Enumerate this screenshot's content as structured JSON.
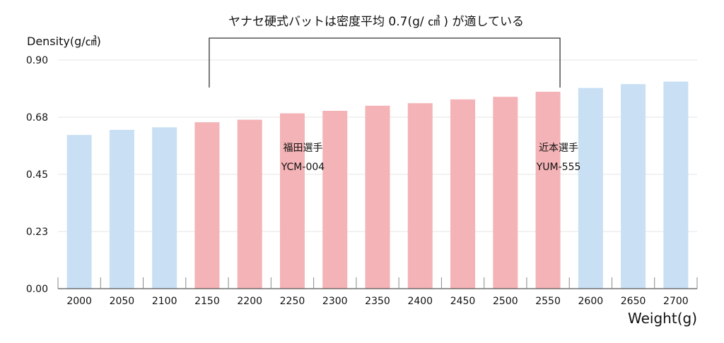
{
  "chart_data": {
    "type": "bar",
    "title": "ヤナセ硬式バットは密度平均 0.7(g/ ㎤ ) が適している",
    "ylabel": "Density(g/㎤)",
    "xlabel": "Weight(g)",
    "ylim": [
      0,
      0.9
    ],
    "yticks": [
      "0.00",
      "0.23",
      "0.45",
      "0.68",
      "0.90"
    ],
    "yticks_values": [
      0,
      0.225,
      0.45,
      0.675,
      0.9
    ],
    "grid": true,
    "categories": [
      "2000",
      "2050",
      "2100",
      "2150",
      "2200",
      "2250",
      "2300",
      "2350",
      "2400",
      "2450",
      "2500",
      "2550",
      "2600",
      "2650",
      "2700"
    ],
    "values": [
      0.605,
      0.625,
      0.635,
      0.655,
      0.665,
      0.69,
      0.7,
      0.72,
      0.73,
      0.745,
      0.755,
      0.775,
      0.79,
      0.805,
      0.815
    ],
    "highlight_range": [
      "2150",
      "2550"
    ],
    "colors": {
      "normal": "#c9dff4",
      "highlight": "#f4b3b6",
      "grid": "#e6e6e6",
      "axis": "#555555"
    },
    "annotations": [
      {
        "line1": "福田選手",
        "line2": "YCM-004",
        "category": "2250"
      },
      {
        "line1": "近本選手",
        "line2": "YUM-555",
        "category": "2550"
      }
    ]
  }
}
